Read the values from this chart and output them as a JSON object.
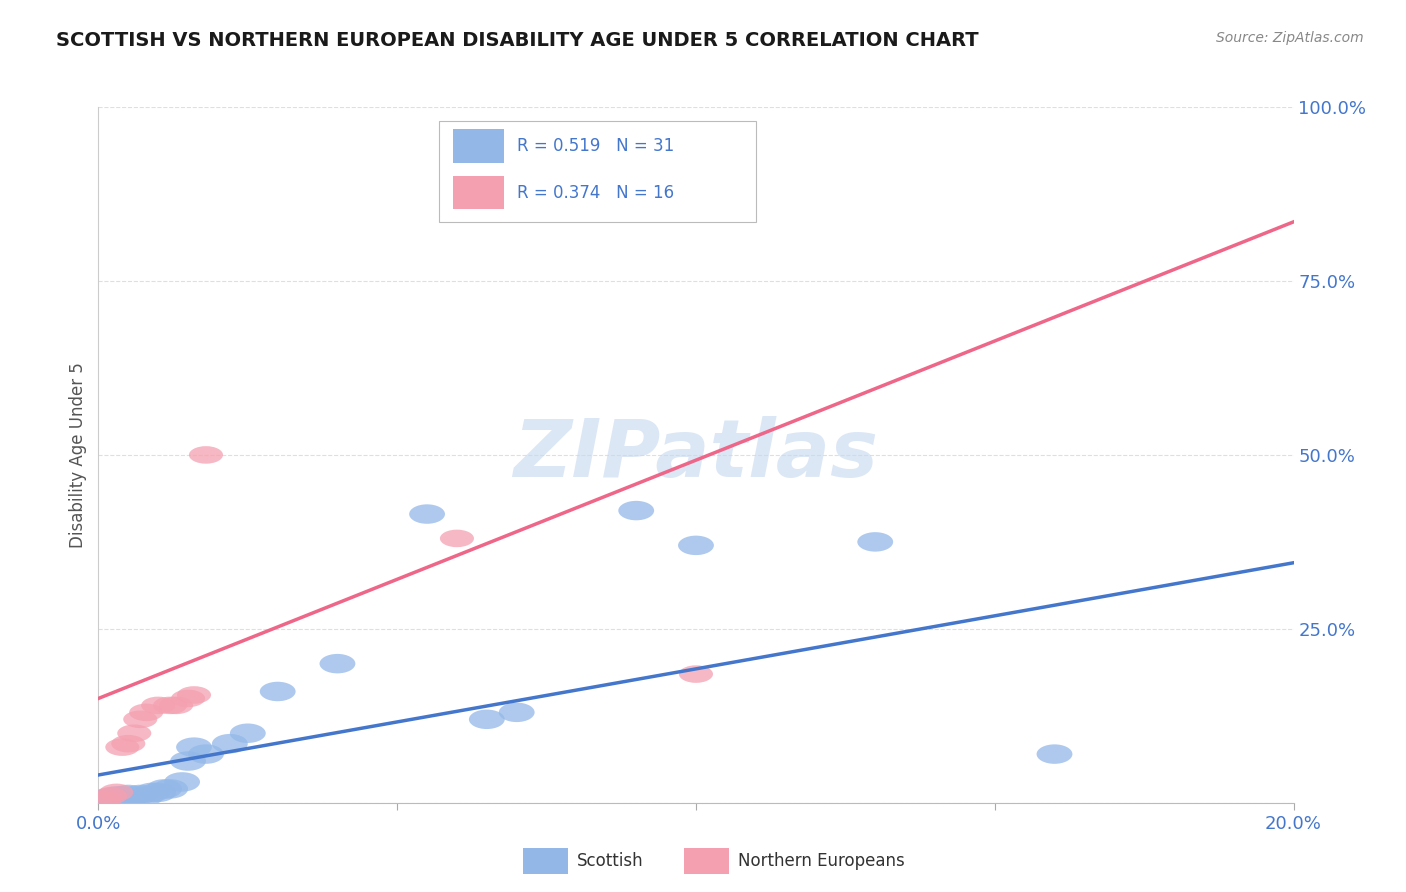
{
  "title": "SCOTTISH VS NORTHERN EUROPEAN DISABILITY AGE UNDER 5 CORRELATION CHART",
  "source": "Source: ZipAtlas.com",
  "ylabel": "Disability Age Under 5",
  "xmin": 0.0,
  "xmax": 0.2,
  "ymin": 0.0,
  "ymax": 1.0,
  "xtick_positions": [
    0.0,
    0.05,
    0.1,
    0.15,
    0.2
  ],
  "xtick_labels": [
    "0.0%",
    "",
    "",
    "",
    "20.0%"
  ],
  "ytick_positions": [
    0.0,
    0.25,
    0.5,
    0.75,
    1.0
  ],
  "ytick_labels": [
    "",
    "25.0%",
    "50.0%",
    "75.0%",
    "100.0%"
  ],
  "scottish_x": [
    0.001,
    0.002,
    0.002,
    0.003,
    0.003,
    0.004,
    0.004,
    0.005,
    0.005,
    0.006,
    0.007,
    0.008,
    0.009,
    0.01,
    0.011,
    0.012,
    0.014,
    0.015,
    0.016,
    0.018,
    0.022,
    0.025,
    0.03,
    0.04,
    0.055,
    0.065,
    0.07,
    0.09,
    0.1,
    0.13,
    0.16
  ],
  "scottish_y": [
    0.005,
    0.005,
    0.008,
    0.005,
    0.01,
    0.005,
    0.01,
    0.005,
    0.012,
    0.01,
    0.012,
    0.01,
    0.015,
    0.015,
    0.02,
    0.02,
    0.03,
    0.06,
    0.08,
    0.07,
    0.085,
    0.1,
    0.16,
    0.2,
    0.415,
    0.12,
    0.13,
    0.42,
    0.37,
    0.375,
    0.07
  ],
  "northern_x": [
    0.001,
    0.002,
    0.003,
    0.004,
    0.005,
    0.006,
    0.007,
    0.008,
    0.01,
    0.012,
    0.013,
    0.015,
    0.016,
    0.018,
    0.06,
    0.1
  ],
  "northern_y": [
    0.005,
    0.01,
    0.015,
    0.08,
    0.085,
    0.1,
    0.12,
    0.13,
    0.14,
    0.14,
    0.14,
    0.15,
    0.155,
    0.5,
    0.38,
    0.185
  ],
  "scottish_line_x0": 0.0,
  "scottish_line_y0": 0.04,
  "scottish_line_x1": 0.2,
  "scottish_line_y1": 0.345,
  "northern_line_x0": 0.0,
  "northern_line_y0": 0.15,
  "northern_line_x1": 0.2,
  "northern_line_y1": 0.835,
  "scottish_R": 0.519,
  "scottish_N": 31,
  "northern_R": 0.374,
  "northern_N": 16,
  "scottish_color": "#93B8E8",
  "northern_color": "#F4A0B0",
  "scottish_line_color": "#4477CC",
  "northern_line_color": "#EE6688",
  "title_fontsize": 14,
  "watermark": "ZIPatlas",
  "watermark_color": "#C5D8F0",
  "background_color": "#FFFFFF",
  "grid_color": "#DDDDEE",
  "tick_color": "#4477CC",
  "ylabel_color": "#555555",
  "source_color": "#888888"
}
